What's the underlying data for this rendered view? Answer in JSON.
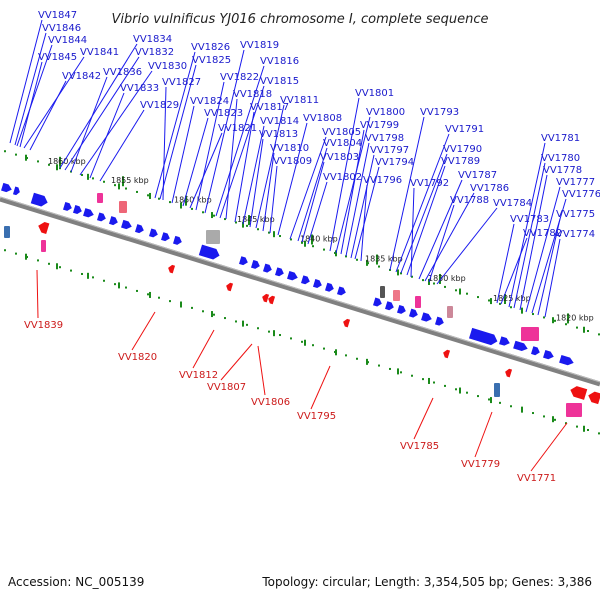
{
  "title": "Vibrio vulnificus YJ016 chromosome I, complete sequence",
  "footer": {
    "accession": "Accession: NC_005139",
    "summary": "Topology: circular; Length: 3,354,505 bp; Genes: 3,386"
  },
  "colors": {
    "forward_gene": "#1a1aee",
    "reverse_gene": "#ee1111",
    "forward_label": "#1a1acc",
    "reverse_label": "#cc1a1a",
    "backbone": "#808080",
    "ticks": "#1a8a1a",
    "rna_pink": "#ee3399",
    "rna_gray": "#aaaaaa",
    "rna_blue": "#3a6fb0"
  },
  "ticks": [
    "1860 kbp",
    "1855 kbp",
    "1850 kbp",
    "1845 kbp",
    "1840 kbp",
    "1835 kbp",
    "1830 kbp",
    "1825 kbp",
    "1820 kbp"
  ],
  "forward_genes": [
    "VV1847",
    "VV1846",
    "VV1844",
    "VV1845",
    "VV1841",
    "VV1842",
    "VV1834",
    "VV1832",
    "VV1836",
    "VV1830",
    "VV1833",
    "VV1829",
    "VV1826",
    "VV1825",
    "VV1827",
    "VV1824",
    "VV1823",
    "VV1821",
    "VV1822",
    "VV1819",
    "VV1816",
    "VV1815",
    "VV1818",
    "VV1817",
    "VV1814",
    "VV1813",
    "VV1811",
    "VV1810",
    "VV1809",
    "VV1808",
    "VV1805",
    "VV1804",
    "VV1803",
    "VV1802",
    "VV1801",
    "VV1800",
    "VV1799",
    "VV1798",
    "VV1797",
    "VV1794",
    "VV1796",
    "VV1793",
    "VV1791",
    "VV1790",
    "VV1789",
    "VV1792",
    "VV1787",
    "VV1786",
    "VV1788",
    "VV1784",
    "VV1783",
    "VV1782",
    "VV1781",
    "VV1780",
    "VV1778",
    "VV1777",
    "VV1776",
    "VV1775",
    "VV1774"
  ],
  "reverse_genes": [
    "VV1839",
    "VV1820",
    "VV1812",
    "VV1807",
    "VV1806",
    "VV1795",
    "VV1785",
    "VV1779",
    "VV1771"
  ]
}
